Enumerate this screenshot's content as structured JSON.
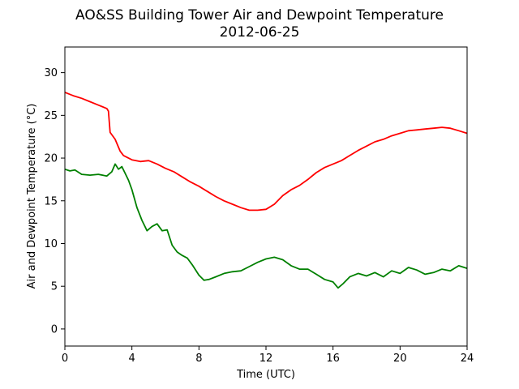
{
  "chart_data": {
    "type": "line",
    "title": "AO&SS Building Tower Air and Dewpoint Temperature",
    "subtitle": "2012-06-25",
    "xlabel": "Time (UTC)",
    "ylabel": "Air and Dewpoint Temperature (°C)",
    "xlim": [
      0,
      24
    ],
    "ylim": [
      -2,
      33
    ],
    "xticks": [
      0,
      4,
      8,
      12,
      16,
      20,
      24
    ],
    "yticks": [
      0,
      5,
      10,
      15,
      20,
      25,
      30
    ],
    "grid": false,
    "legend": "none",
    "series": [
      {
        "color": "#ff0000",
        "points": [
          [
            0,
            27.7
          ],
          [
            0.5,
            27.3
          ],
          [
            1,
            27.0
          ],
          [
            1.5,
            26.6
          ],
          [
            2,
            26.2
          ],
          [
            2.5,
            25.8
          ],
          [
            2.6,
            25.5
          ],
          [
            2.7,
            23.0
          ],
          [
            3.0,
            22.2
          ],
          [
            3.3,
            20.8
          ],
          [
            3.5,
            20.3
          ],
          [
            4.0,
            19.8
          ],
          [
            4.5,
            19.6
          ],
          [
            5.0,
            19.7
          ],
          [
            5.5,
            19.3
          ],
          [
            6.0,
            18.8
          ],
          [
            6.5,
            18.4
          ],
          [
            7.0,
            17.8
          ],
          [
            7.5,
            17.2
          ],
          [
            8.0,
            16.7
          ],
          [
            8.5,
            16.1
          ],
          [
            9.0,
            15.5
          ],
          [
            9.5,
            15.0
          ],
          [
            10.0,
            14.6
          ],
          [
            10.5,
            14.2
          ],
          [
            11.0,
            13.9
          ],
          [
            11.5,
            13.9
          ],
          [
            12.0,
            14.0
          ],
          [
            12.5,
            14.6
          ],
          [
            13.0,
            15.6
          ],
          [
            13.5,
            16.3
          ],
          [
            14.0,
            16.8
          ],
          [
            14.5,
            17.5
          ],
          [
            15.0,
            18.3
          ],
          [
            15.5,
            18.9
          ],
          [
            16.0,
            19.3
          ],
          [
            16.5,
            19.7
          ],
          [
            17.0,
            20.3
          ],
          [
            17.5,
            20.9
          ],
          [
            18.0,
            21.4
          ],
          [
            18.5,
            21.9
          ],
          [
            19.0,
            22.2
          ],
          [
            19.5,
            22.6
          ],
          [
            20.0,
            22.9
          ],
          [
            20.5,
            23.2
          ],
          [
            21.0,
            23.3
          ],
          [
            21.5,
            23.4
          ],
          [
            22.0,
            23.5
          ],
          [
            22.5,
            23.6
          ],
          [
            23.0,
            23.5
          ],
          [
            23.5,
            23.2
          ],
          [
            24.0,
            22.9
          ]
        ]
      },
      {
        "color": "#008000",
        "points": [
          [
            0,
            18.7
          ],
          [
            0.3,
            18.5
          ],
          [
            0.6,
            18.6
          ],
          [
            1.0,
            18.1
          ],
          [
            1.5,
            18.0
          ],
          [
            2.0,
            18.1
          ],
          [
            2.5,
            17.9
          ],
          [
            2.8,
            18.4
          ],
          [
            3.0,
            19.3
          ],
          [
            3.2,
            18.7
          ],
          [
            3.4,
            19.0
          ],
          [
            3.6,
            18.2
          ],
          [
            3.8,
            17.4
          ],
          [
            4.0,
            16.3
          ],
          [
            4.3,
            14.2
          ],
          [
            4.6,
            12.7
          ],
          [
            4.9,
            11.5
          ],
          [
            5.2,
            12.0
          ],
          [
            5.5,
            12.3
          ],
          [
            5.8,
            11.5
          ],
          [
            6.1,
            11.6
          ],
          [
            6.4,
            9.8
          ],
          [
            6.7,
            9.0
          ],
          [
            7.0,
            8.6
          ],
          [
            7.3,
            8.3
          ],
          [
            7.6,
            7.5
          ],
          [
            8.0,
            6.3
          ],
          [
            8.3,
            5.7
          ],
          [
            8.6,
            5.8
          ],
          [
            9.0,
            6.1
          ],
          [
            9.5,
            6.5
          ],
          [
            10.0,
            6.7
          ],
          [
            10.5,
            6.8
          ],
          [
            11.0,
            7.3
          ],
          [
            11.5,
            7.8
          ],
          [
            12.0,
            8.2
          ],
          [
            12.5,
            8.4
          ],
          [
            13.0,
            8.1
          ],
          [
            13.5,
            7.4
          ],
          [
            14.0,
            7.0
          ],
          [
            14.5,
            7.0
          ],
          [
            15.0,
            6.4
          ],
          [
            15.5,
            5.8
          ],
          [
            16.0,
            5.5
          ],
          [
            16.3,
            4.8
          ],
          [
            16.6,
            5.3
          ],
          [
            17.0,
            6.1
          ],
          [
            17.5,
            6.5
          ],
          [
            18.0,
            6.2
          ],
          [
            18.5,
            6.6
          ],
          [
            19.0,
            6.1
          ],
          [
            19.5,
            6.8
          ],
          [
            20.0,
            6.5
          ],
          [
            20.5,
            7.2
          ],
          [
            21.0,
            6.9
          ],
          [
            21.5,
            6.4
          ],
          [
            22.0,
            6.6
          ],
          [
            22.5,
            7.0
          ],
          [
            23.0,
            6.8
          ],
          [
            23.5,
            7.4
          ],
          [
            24.0,
            7.1
          ]
        ]
      }
    ]
  }
}
